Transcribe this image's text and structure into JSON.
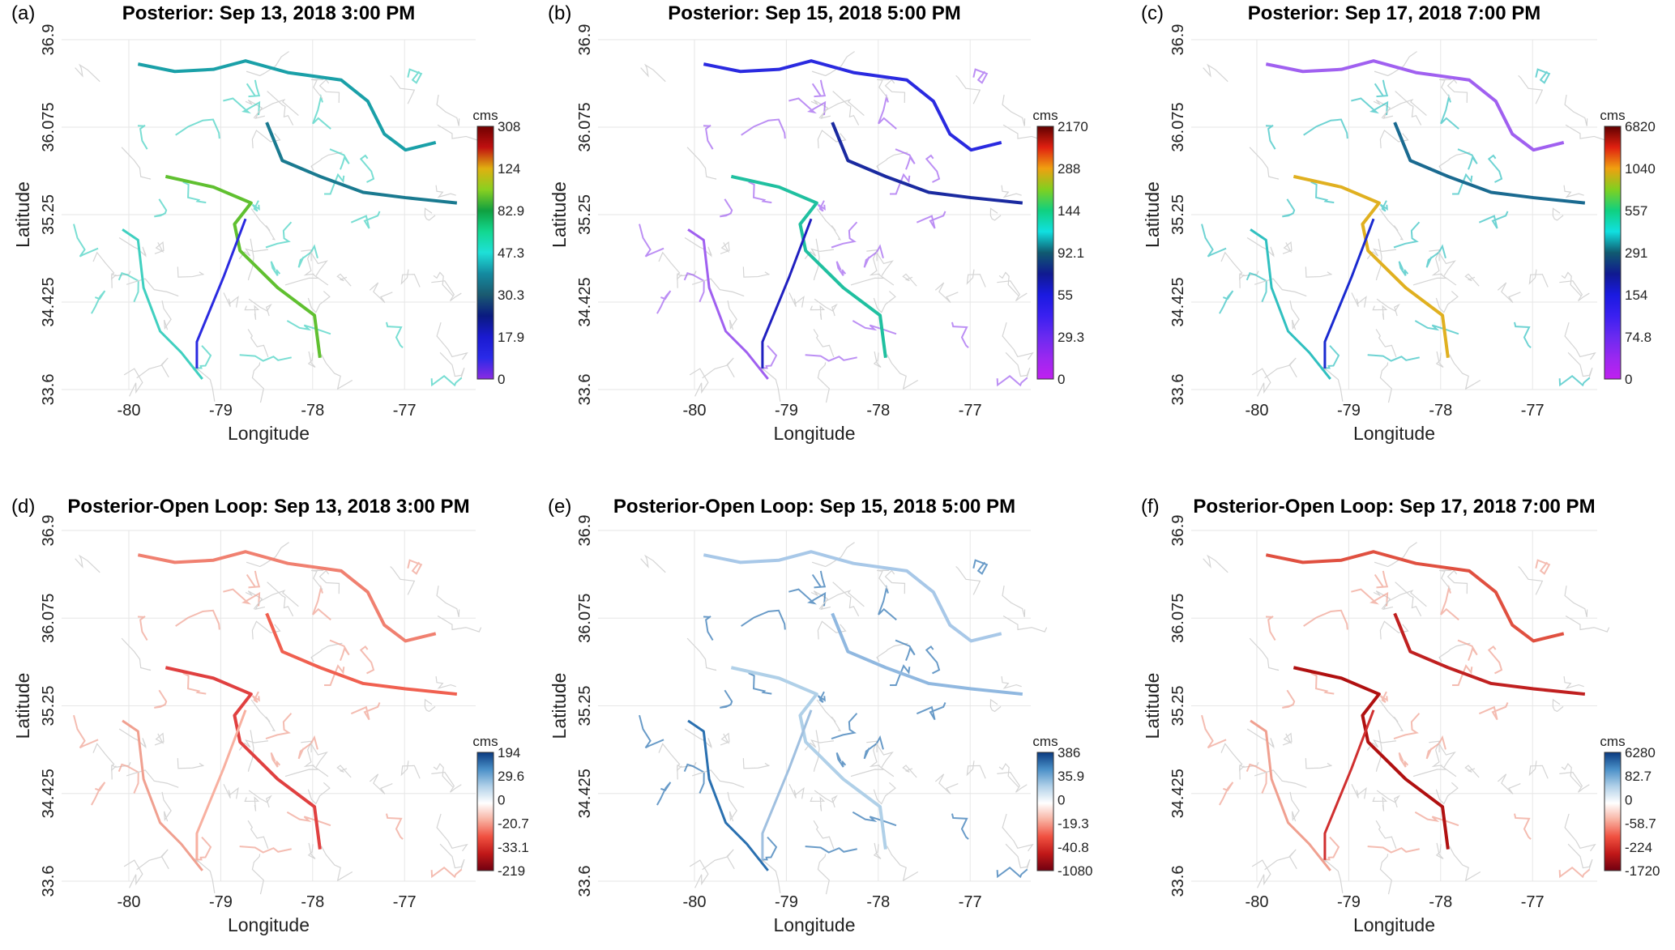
{
  "chart_data": [
    {
      "type": "map",
      "panel_label": "(a)",
      "title": "Posterior: Sep 13, 2018  3:00 PM",
      "xlabel": "Longitude",
      "ylabel": "Latitude",
      "xticks": [
        "-80",
        "-79",
        "-78",
        "-77"
      ],
      "yticks": [
        "33.6",
        "34.425",
        "35.25",
        "36.075",
        "36.9"
      ],
      "colorbar": {
        "unit": "cms",
        "ticks": [
          "0",
          "17.9",
          "30.3",
          "47.3",
          "82.9",
          "124",
          "308"
        ],
        "colormap": [
          "#8a2be2",
          "#2a2ae8",
          "#1a1ad0",
          "#0a1a80",
          "#1a5a70",
          "#148aa0",
          "#1ee0d8",
          "#12d890",
          "#10a040",
          "#8ad020",
          "#e0b010",
          "#c01010",
          "#700000"
        ]
      },
      "river_colors": [
        "#1aa0a8",
        "#1a7a90",
        "#60c030",
        "#40d0c0",
        "#2a2ae0"
      ]
    },
    {
      "type": "map",
      "panel_label": "(b)",
      "title": "Posterior: Sep 15, 2018  5:00 PM",
      "xlabel": "Longitude",
      "ylabel": "Latitude",
      "xticks": [
        "-80",
        "-79",
        "-78",
        "-77"
      ],
      "yticks": [
        "33.6",
        "34.425",
        "35.25",
        "36.075",
        "36.9"
      ],
      "colorbar": {
        "unit": "cms",
        "ticks": [
          "0",
          "29.3",
          "55",
          "92.1",
          "144",
          "288",
          "2170"
        ],
        "colormap": [
          "#c020f0",
          "#9a28f0",
          "#6a2af0",
          "#3a20f0",
          "#1a1ae0",
          "#101a90",
          "#105a70",
          "#10e0e0",
          "#10d080",
          "#80d020",
          "#f0a010",
          "#e02010",
          "#600000"
        ]
      },
      "river_colors": [
        "#2a2ae0",
        "#1a2aa0",
        "#20c0a0",
        "#a060f0",
        "#2020c0"
      ]
    },
    {
      "type": "map",
      "panel_label": "(c)",
      "title": "Posterior: Sep 17, 2018  7:00 PM",
      "xlabel": "Longitude",
      "ylabel": "Latitude",
      "xticks": [
        "-80",
        "-79",
        "-78",
        "-77"
      ],
      "yticks": [
        "33.6",
        "34.425",
        "35.25",
        "36.075",
        "36.9"
      ],
      "colorbar": {
        "unit": "cms",
        "ticks": [
          "0",
          "74.8",
          "154",
          "291",
          "557",
          "1040",
          "6820"
        ],
        "colormap": [
          "#c020f0",
          "#9a28f0",
          "#6a2af0",
          "#3a20f0",
          "#1a1ae0",
          "#101a90",
          "#105a70",
          "#10e0e0",
          "#10d080",
          "#80d020",
          "#f0a010",
          "#e02010",
          "#600000"
        ]
      },
      "river_colors": [
        "#a060f0",
        "#1a6a90",
        "#e0b020",
        "#30c0c0",
        "#1a2ad0"
      ]
    },
    {
      "type": "map",
      "panel_label": "(d)",
      "title": "Posterior-Open Loop: Sep 13, 2018  3:00 PM",
      "xlabel": "Longitude",
      "ylabel": "Latitude",
      "xticks": [
        "-80",
        "-79",
        "-78",
        "-77"
      ],
      "yticks": [
        "33.6",
        "34.425",
        "35.25",
        "36.075",
        "36.9"
      ],
      "colorbar": {
        "unit": "cms",
        "ticks": [
          "-219",
          "-33.1",
          "-20.7",
          "0",
          "29.6",
          "194"
        ],
        "colormap": [
          "#700010",
          "#c01818",
          "#f05040",
          "#f8b0a0",
          "#ffffff",
          "#b0d0e8",
          "#4a90c8",
          "#0a3a80"
        ]
      },
      "river_colors": [
        "#f08070",
        "#f06050",
        "#e04040",
        "#f0a090",
        "#f8b0a0"
      ]
    },
    {
      "type": "map",
      "panel_label": "(e)",
      "title": "Posterior-Open Loop: Sep 15, 2018  5:00 PM",
      "xlabel": "Longitude",
      "ylabel": "Latitude",
      "xticks": [
        "-80",
        "-79",
        "-78",
        "-77"
      ],
      "yticks": [
        "33.6",
        "34.425",
        "35.25",
        "36.075",
        "36.9"
      ],
      "colorbar": {
        "unit": "cms",
        "ticks": [
          "-1080",
          "-40.8",
          "-19.3",
          "0",
          "35.9",
          "386"
        ],
        "colormap": [
          "#700010",
          "#c01818",
          "#f05040",
          "#f8b0a0",
          "#ffffff",
          "#b0d0e8",
          "#4a90c8",
          "#0a3a80"
        ]
      },
      "river_colors": [
        "#a8c8e8",
        "#90b8e0",
        "#b0d0e8",
        "#2a70b0",
        "#a0c0e0"
      ]
    },
    {
      "type": "map",
      "panel_label": "(f)",
      "title": "Posterior-Open Loop: Sep 17, 2018  7:00 PM",
      "xlabel": "Longitude",
      "ylabel": "Latitude",
      "xticks": [
        "-80",
        "-79",
        "-78",
        "-77"
      ],
      "yticks": [
        "33.6",
        "34.425",
        "35.25",
        "36.075",
        "36.9"
      ],
      "colorbar": {
        "unit": "cms",
        "ticks": [
          "-1720",
          "-224",
          "-58.7",
          "0",
          "82.7",
          "6280"
        ],
        "colormap": [
          "#700010",
          "#c01818",
          "#f05040",
          "#f8b0a0",
          "#ffffff",
          "#b0d0e8",
          "#4a90c8",
          "#0a3a80"
        ]
      },
      "river_colors": [
        "#e05040",
        "#c02020",
        "#b01010",
        "#f0a090",
        "#d03030"
      ]
    }
  ]
}
